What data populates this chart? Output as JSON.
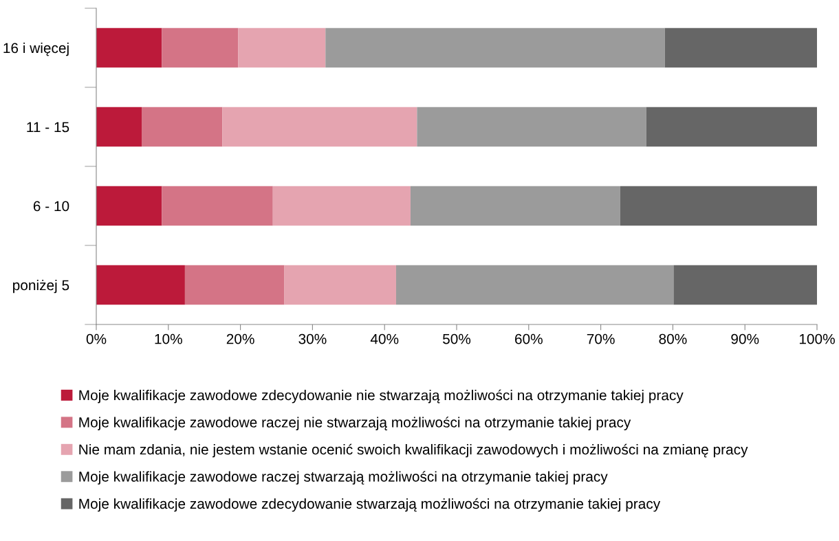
{
  "chart_data": {
    "type": "bar",
    "orientation": "horizontal",
    "stacked": true,
    "categories": [
      "16 i więcej",
      "11 - 15",
      "6 - 10",
      "poniżej 5"
    ],
    "series": [
      {
        "name": "Moje kwalifikacje zawodowe zdecydowanie nie stwarzają możliwości na otrzymanie takiej pracy",
        "color": "#bc1a3a",
        "values": [
          9.1,
          6.3,
          9.1,
          12.3
        ]
      },
      {
        "name": "Moje kwalifikacje zawodowe raczej nie stwarzają możliwości na otrzymanie takiej pracy",
        "color": "#d47486",
        "values": [
          10.6,
          11.2,
          15.4,
          13.8
        ]
      },
      {
        "name": "Nie mam zdania, nie jestem wstanie ocenić swoich kwalifikacji zawodowych i możliwości na zmianę pracy",
        "color": "#e5a4b0",
        "values": [
          12.1,
          27.0,
          19.1,
          15.5
        ]
      },
      {
        "name": "Moje kwalifikacje zawodowe raczej stwarzają możliwości na otrzymanie takiej pracy",
        "color": "#9b9b9b",
        "values": [
          47.1,
          31.8,
          29.1,
          38.5
        ]
      },
      {
        "name": "Moje kwalifikacje zawodowe zdecydowanie stwarzają możliwości na otrzymanie takiej pracy",
        "color": "#666666",
        "values": [
          21.1,
          23.7,
          27.3,
          19.9
        ]
      }
    ],
    "xlim": [
      0,
      100
    ],
    "xticks": [
      {
        "value": 0,
        "label": "0%"
      },
      {
        "value": 10,
        "label": "10%"
      },
      {
        "value": 20,
        "label": "20%"
      },
      {
        "value": 30,
        "label": "30%"
      },
      {
        "value": 40,
        "label": "40%"
      },
      {
        "value": 50,
        "label": "50%"
      },
      {
        "value": 60,
        "label": "60%"
      },
      {
        "value": 70,
        "label": "70%"
      },
      {
        "value": 80,
        "label": "80%"
      },
      {
        "value": 90,
        "label": "90%"
      },
      {
        "value": 100,
        "label": "100%"
      }
    ],
    "grid": false,
    "legend": "bottom"
  }
}
